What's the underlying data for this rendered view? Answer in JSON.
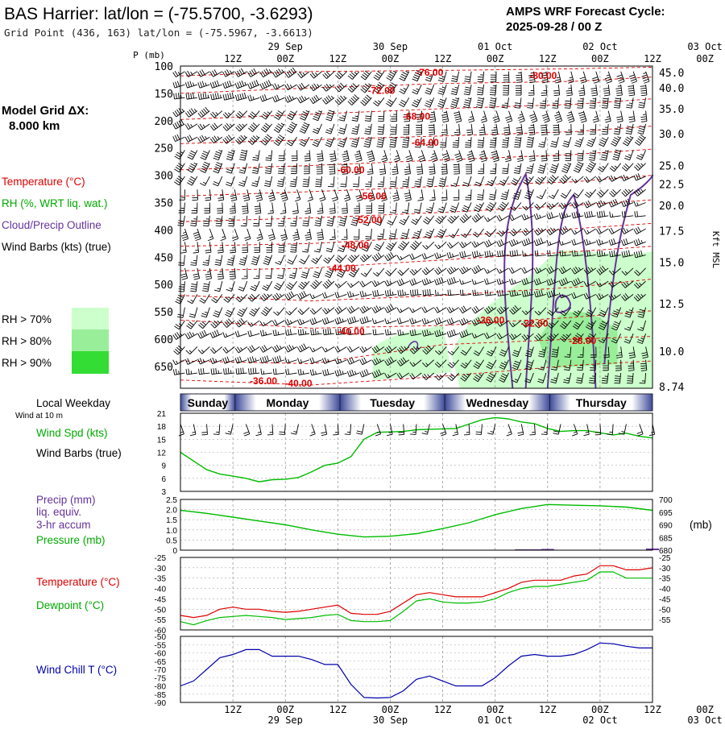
{
  "header": {
    "title": "BAS Harrier:  lat/lon = (-75.5700, -3.6293)",
    "subtitle": "Grid Point (436, 163) lat/lon = (-75.5967, -3.6613)",
    "cycle_line1": "AMPS WRF Forecast Cycle:",
    "cycle_line2": "2025-09-28 / 00  Z"
  },
  "left_panel": {
    "model_grid_line1": "Model Grid ΔX:",
    "model_grid_line2": "8.000 km",
    "legend_temperature": "Temperature (°C)",
    "legend_rh": "RH (%, WRT liq. wat.)",
    "legend_cloud": "Cloud/Precip Outline",
    "legend_wind": "Wind Barbs (kts) (true)",
    "rh_levels": [
      "RH > 70%",
      "RH > 80%",
      "RH > 90%"
    ],
    "local_weekday": "Local Weekday",
    "wind_10m": "Wind at 10 m",
    "wind_spd_label": "Wind Spd (kts)",
    "wind_barbs_label": "Wind Barbs (true)",
    "precip_label": "Precip (mm)",
    "liq_label": "liq. equiv.",
    "accum_label": "3-hr accum",
    "pressure_label": "Pressure (mb)",
    "temp_label": "Temperature (°C)",
    "dew_label": "Dewpoint (°C)",
    "chill_label": "Wind Chill T (°C)"
  },
  "colors": {
    "temperature": "#dd0000",
    "dewpoint": "#00bb00",
    "wind_speed": "#00bb00",
    "pressure": "#00bb00",
    "precip": "#663399",
    "wind_chill": "#0000aa",
    "cloud_outline": "#663399",
    "rh70": "#ccffcc",
    "rh80": "#99ee99",
    "rh90": "#33dd33",
    "weekday_band": "#3d4a9a"
  },
  "time_axis": {
    "top_hour_labels": [
      "12Z",
      "00Z",
      "12Z",
      "00Z",
      "12Z",
      "00Z",
      "12Z",
      "00Z",
      "12Z",
      "00Z"
    ],
    "top_date_labels": [
      "29 Sep",
      "30 Sep",
      "01 Oct",
      "02 Oct",
      "03 Oct"
    ],
    "bottom_hour_labels": [
      "12Z",
      "00Z",
      "12Z",
      "00Z",
      "12Z",
      "00Z",
      "12Z",
      "00Z",
      "12Z",
      "00Z"
    ],
    "bottom_date_labels": [
      "29 Sep",
      "30 Sep",
      "01 Oct",
      "02 Oct",
      "03 Oct"
    ],
    "weekdays": [
      "Sunday",
      "Monday",
      "Tuesday",
      "Wednesday",
      "Thursday"
    ]
  },
  "chart_data": [
    {
      "type": "heatmap",
      "ylabel": "P (mb)",
      "y2label": "Kft MSL",
      "pressure_ticks": [
        "100",
        "150",
        "200",
        "250",
        "300",
        "350",
        "400",
        "450",
        "500",
        "550",
        "600",
        "650"
      ],
      "height_ticks": [
        "45.0",
        "40.0",
        "35.0",
        "30.0",
        "25.0",
        "22.5",
        "20.0",
        "17.5",
        "15.0",
        "12.5",
        "10.0",
        "8.74"
      ],
      "ylim": [
        100,
        690
      ],
      "x_hours": [
        0,
        108
      ],
      "temperature_contour_labels": [
        {
          "text": "-76.00",
          "hour": 57,
          "p": 112
        },
        {
          "text": "-72.00",
          "hour": 46,
          "p": 145
        },
        {
          "text": "-80.00",
          "hour": 83,
          "p": 118
        },
        {
          "text": "-68.00",
          "hour": 54,
          "p": 192
        },
        {
          "text": "-64.00",
          "hour": 56,
          "p": 240
        },
        {
          "text": "-60.00",
          "hour": 39,
          "p": 290
        },
        {
          "text": "-56.00",
          "hour": 44,
          "p": 338
        },
        {
          "text": "-52.00",
          "hour": 43,
          "p": 382
        },
        {
          "text": "-48.00",
          "hour": 40,
          "p": 428
        },
        {
          "text": "-44.00",
          "hour": 37,
          "p": 470
        },
        {
          "text": "-40.00",
          "hour": 39,
          "p": 586
        },
        {
          "text": "-36.00",
          "hour": 71,
          "p": 565
        },
        {
          "text": "-32.00",
          "hour": 81,
          "p": 571
        },
        {
          "text": "-28.00",
          "hour": 92,
          "p": 603
        },
        {
          "text": "-36.00",
          "hour": 19,
          "p": 677
        },
        {
          "text": "-40.00",
          "hour": 27,
          "p": 681
        }
      ]
    },
    {
      "type": "line",
      "ylabel": "Wind Spd (kts)",
      "yticks": [
        3,
        6,
        9,
        12,
        15,
        18,
        21
      ],
      "ylim": [
        3,
        21
      ],
      "x": [
        0,
        3,
        6,
        9,
        12,
        15,
        18,
        21,
        24,
        27,
        30,
        33,
        36,
        39,
        42,
        45,
        48,
        51,
        54,
        57,
        60,
        63,
        66,
        69,
        72,
        75,
        78,
        81,
        84,
        87,
        90,
        93,
        96,
        99,
        102,
        105,
        108
      ],
      "series": [
        {
          "values": [
            12,
            10,
            8,
            7,
            6.5,
            6,
            5.2,
            5.7,
            5.8,
            6.2,
            7.5,
            9,
            9.5,
            11,
            15,
            16.6,
            16.7,
            16.8,
            17.2,
            17.3,
            17.4,
            17.5,
            18.5,
            19.5,
            20,
            19.7,
            19,
            18.6,
            17.5,
            16.8,
            17,
            17,
            16.5,
            16,
            16.4,
            15.7,
            15.3
          ]
        }
      ]
    },
    {
      "type": "line",
      "ylabel": "Precip (mm) / Pressure (mb)",
      "yticks_left": [
        "0",
        "0.5",
        "1.0",
        "1.5",
        "2.0",
        "2.5"
      ],
      "yticks_right": [
        "680",
        "685",
        "690",
        "695",
        "700"
      ],
      "ylim_left": [
        0,
        2.5
      ],
      "ylim_right": [
        680,
        700
      ],
      "right_unit": "(mb)",
      "x": [
        0,
        6,
        12,
        18,
        24,
        30,
        36,
        42,
        48,
        54,
        60,
        66,
        72,
        78,
        84,
        90,
        96,
        102,
        108
      ],
      "series": [
        {
          "name": "Pressure",
          "values": [
            695.7,
            694.5,
            693,
            691.5,
            690,
            688,
            686.3,
            685.2,
            685.5,
            686.5,
            688.5,
            690.8,
            694,
            696.4,
            698,
            697.7,
            697.5,
            697,
            695.7
          ]
        }
      ],
      "precip_bars": [
        {
          "hour": 78,
          "value": 0.04
        },
        {
          "hour": 81,
          "value": 0.04
        },
        {
          "hour": 84,
          "value": 0.06
        },
        {
          "hour": 108,
          "value": 0.08
        }
      ]
    },
    {
      "type": "line",
      "ylabel": "Temperature / Dewpoint (°C)",
      "yticks": [
        -60,
        -55,
        -50,
        -45,
        -40,
        -35,
        -30,
        -25
      ],
      "ylim": [
        -60,
        -25
      ],
      "x": [
        0,
        3,
        6,
        9,
        12,
        15,
        18,
        21,
        24,
        27,
        30,
        33,
        36,
        39,
        42,
        45,
        48,
        51,
        54,
        57,
        60,
        63,
        66,
        69,
        72,
        75,
        78,
        81,
        84,
        87,
        90,
        93,
        96,
        99,
        102,
        105,
        108
      ],
      "series": [
        {
          "name": "Temperature",
          "values": [
            -53,
            -54,
            -53,
            -50,
            -49,
            -50,
            -50,
            -51,
            -51.5,
            -51,
            -50,
            -49,
            -48,
            -52,
            -52.5,
            -52.5,
            -51,
            -47,
            -43,
            -42,
            -43,
            -44,
            -44,
            -44,
            -42,
            -40,
            -37,
            -36,
            -36,
            -36,
            -34,
            -33,
            -29,
            -29,
            -31,
            -31,
            -30
          ]
        },
        {
          "name": "Dewpoint",
          "values": [
            -56,
            -57.5,
            -55.5,
            -54,
            -53.5,
            -53,
            -53.5,
            -54,
            -55,
            -54.5,
            -54,
            -53,
            -52.5,
            -55.5,
            -56,
            -56,
            -55.5,
            -51,
            -46,
            -45,
            -46.5,
            -47,
            -47,
            -46.5,
            -45,
            -42,
            -40,
            -39,
            -39,
            -38,
            -37,
            -36,
            -32,
            -32,
            -35,
            -35,
            -35
          ]
        }
      ]
    },
    {
      "type": "line",
      "ylabel": "Wind Chill T (°C)",
      "yticks": [
        -90,
        -85,
        -80,
        -75,
        -70,
        -65,
        -60,
        -55,
        -50
      ],
      "ylim": [
        -90,
        -50
      ],
      "x": [
        0,
        3,
        6,
        9,
        12,
        15,
        18,
        21,
        24,
        27,
        30,
        33,
        36,
        39,
        42,
        45,
        48,
        51,
        54,
        57,
        60,
        63,
        66,
        69,
        72,
        75,
        78,
        81,
        84,
        87,
        90,
        93,
        96,
        99,
        102,
        105,
        108
      ],
      "series": [
        {
          "values": [
            -80,
            -77,
            -70,
            -63,
            -61,
            -58,
            -58,
            -62,
            -62,
            -62,
            -64,
            -67,
            -67,
            -79,
            -87,
            -87.3,
            -87,
            -83,
            -76,
            -74,
            -77,
            -80,
            -80,
            -80,
            -75,
            -68,
            -62,
            -61,
            -62,
            -62,
            -61,
            -58,
            -54,
            -54.5,
            -56,
            -57,
            -57
          ]
        }
      ]
    }
  ]
}
